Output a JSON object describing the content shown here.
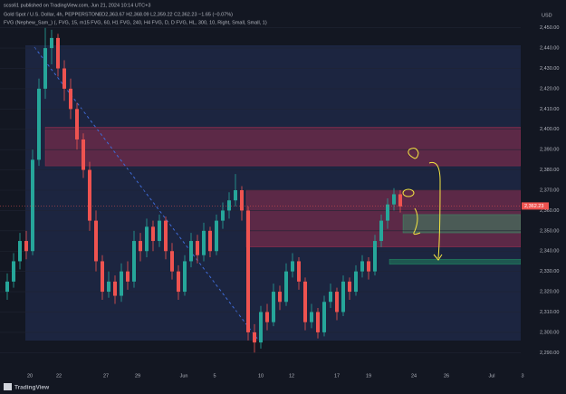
{
  "header": {
    "published": "scss61 published on TradingView.com, Jun 21, 2024 10:14 UTC+3",
    "symbol": "Gold Spot / U.S. Dollar, 4h, PEPPERSTONE",
    "ohlc": "O2,363.67 H2,368.09 L2,359.22 C2,362.23 −1.65 (−0.07%)",
    "indicator": "FVG (Nephew_Sam_) (, FVG, 15, m15 FVG, 60, H1 FVG, 240, H4 FVG, D, D FVG, HL, 300, 10, Right, Small, Small, 1)"
  },
  "chart_data": {
    "type": "candlestick",
    "currency": "USD",
    "ylim": [
      2283,
      2457
    ],
    "yticks": [
      {
        "value": 2450,
        "label": "2,450.00"
      },
      {
        "value": 2440,
        "label": "2,440.00"
      },
      {
        "value": 2430,
        "label": "2,430.00"
      },
      {
        "value": 2420,
        "label": "2,420.00"
      },
      {
        "value": 2410,
        "label": "2,410.00"
      },
      {
        "value": 2400,
        "label": "2,400.00"
      },
      {
        "value": 2390,
        "label": "2,390.00"
      },
      {
        "value": 2380,
        "label": "2,380.00"
      },
      {
        "value": 2370,
        "label": "2,370.00"
      },
      {
        "value": 2360,
        "label": "2,360.00"
      },
      {
        "value": 2350,
        "label": "2,350.00"
      },
      {
        "value": 2340,
        "label": "2,340.00"
      },
      {
        "value": 2330,
        "label": "2,330.00"
      },
      {
        "value": 2320,
        "label": "2,320.00"
      },
      {
        "value": 2310,
        "label": "2,310.00"
      },
      {
        "value": 2300,
        "label": "2,300.00"
      },
      {
        "value": 2290,
        "label": "2,290.00"
      }
    ],
    "x_labels": [
      "20",
      "22",
      "27",
      "29",
      "Jun",
      "5",
      "10",
      "12",
      "17",
      "19",
      "24",
      "26",
      "Jul",
      "3"
    ],
    "open": [
      2320,
      2325,
      2335,
      2345,
      2340,
      2385,
      2420,
      2440,
      2445,
      2430,
      2420,
      2410,
      2395,
      2380,
      2355,
      2335,
      2320,
      2325,
      2318,
      2330,
      2325,
      2345,
      2340,
      2352,
      2345,
      2355,
      2340,
      2330,
      2320,
      2335,
      2345,
      2338,
      2350,
      2340,
      2355,
      2360,
      2365,
      2370,
      2360,
      2300,
      2295,
      2310,
      2305,
      2320,
      2315,
      2330,
      2335,
      2325,
      2305,
      2310,
      2300,
      2315,
      2320,
      2310,
      2325,
      2320,
      2330,
      2335,
      2330,
      2345,
      2355,
      2363,
      2368
    ],
    "high": [
      2329,
      2339,
      2349,
      2350,
      2390,
      2425,
      2450,
      2449,
      2447,
      2434,
      2425,
      2413,
      2398,
      2384,
      2360,
      2338,
      2330,
      2328,
      2334,
      2335,
      2350,
      2349,
      2356,
      2355,
      2358,
      2357,
      2344,
      2333,
      2338,
      2349,
      2348,
      2354,
      2352,
      2358,
      2364,
      2369,
      2378,
      2372,
      2362,
      2304,
      2313,
      2314,
      2324,
      2323,
      2334,
      2339,
      2337,
      2327,
      2314,
      2312,
      2318,
      2324,
      2322,
      2328,
      2327,
      2333,
      2338,
      2337,
      2348,
      2358,
      2366,
      2371,
      2370
    ],
    "low": [
      2316,
      2322,
      2331,
      2336,
      2338,
      2382,
      2415,
      2432,
      2426,
      2414,
      2405,
      2390,
      2376,
      2350,
      2330,
      2316,
      2317,
      2314,
      2315,
      2321,
      2322,
      2335,
      2337,
      2340,
      2342,
      2336,
      2326,
      2316,
      2318,
      2332,
      2334,
      2335,
      2337,
      2338,
      2351,
      2356,
      2362,
      2355,
      2296,
      2290,
      2292,
      2301,
      2303,
      2311,
      2313,
      2327,
      2321,
      2301,
      2302,
      2297,
      2298,
      2312,
      2306,
      2308,
      2316,
      2318,
      2327,
      2326,
      2328,
      2342,
      2351,
      2360,
      2359
    ],
    "close": [
      2325,
      2335,
      2345,
      2340,
      2385,
      2420,
      2440,
      2445,
      2430,
      2420,
      2410,
      2395,
      2380,
      2355,
      2335,
      2320,
      2325,
      2318,
      2330,
      2325,
      2345,
      2340,
      2352,
      2345,
      2355,
      2340,
      2330,
      2320,
      2335,
      2345,
      2338,
      2350,
      2340,
      2355,
      2360,
      2365,
      2370,
      2360,
      2300,
      2295,
      2310,
      2305,
      2320,
      2315,
      2330,
      2335,
      2325,
      2305,
      2310,
      2300,
      2315,
      2320,
      2310,
      2325,
      2320,
      2330,
      2335,
      2330,
      2345,
      2355,
      2363,
      2368,
      2362
    ],
    "last_price": {
      "value": 2362.23,
      "label": "2,362.23"
    },
    "zones": [
      {
        "low": 2382,
        "high": 2401,
        "color": "#f2365a"
      },
      {
        "low": 2342,
        "high": 2370,
        "color": "#f2365a"
      },
      {
        "low": 2349,
        "high": 2358,
        "color": "#26d07c"
      },
      {
        "low": 2333.5,
        "high": 2336,
        "color": "#26d07c"
      }
    ]
  },
  "footer": {
    "brand": "TradingView"
  }
}
